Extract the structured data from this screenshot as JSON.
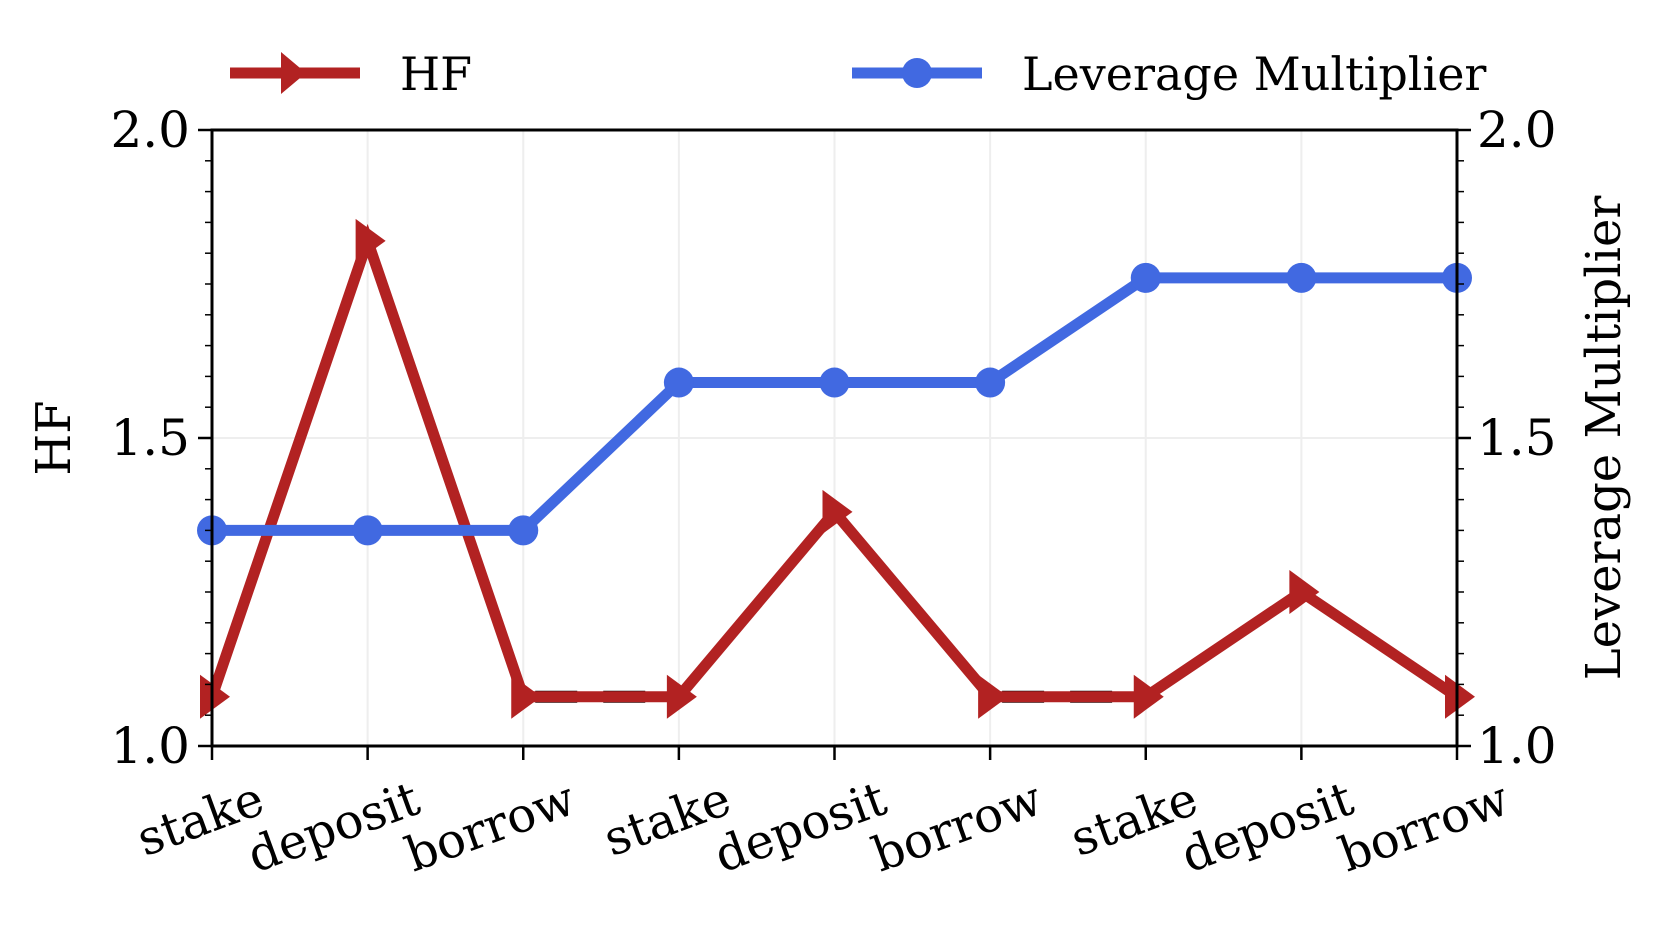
{
  "chart_data": {
    "type": "line",
    "categories": [
      "stake",
      "deposit",
      "borrow",
      "stake",
      "deposit",
      "borrow",
      "stake",
      "deposit",
      "borrow"
    ],
    "y_left": {
      "label": "HF",
      "ylim": [
        1.0,
        2.0
      ],
      "ticks": [
        "1.0",
        "1.5",
        "2.0"
      ]
    },
    "y_right": {
      "label": "Leverage Multiplier",
      "ylim": [
        1.0,
        2.0
      ],
      "ticks": [
        "1.0",
        "1.5",
        "2.0"
      ]
    },
    "series": [
      {
        "name": "HF",
        "axis": "left",
        "marker": "triangle-right",
        "color": "#b22222",
        "values": [
          1.08,
          1.82,
          1.08,
          1.08,
          1.38,
          1.08,
          1.08,
          1.25,
          1.08
        ]
      },
      {
        "name": "Leverage Multiplier",
        "axis": "right",
        "marker": "circle",
        "color": "#4169e1",
        "values": [
          1.35,
          1.35,
          1.35,
          1.59,
          1.59,
          1.59,
          1.76,
          1.76,
          1.76
        ]
      }
    ],
    "dashed_segments": [
      {
        "from": 2,
        "to": 3,
        "value": 1.08,
        "color": "#000000"
      },
      {
        "from": 5,
        "to": 6,
        "value": 1.08,
        "color": "#000000"
      }
    ],
    "grid": true,
    "legend_placement": "top"
  }
}
